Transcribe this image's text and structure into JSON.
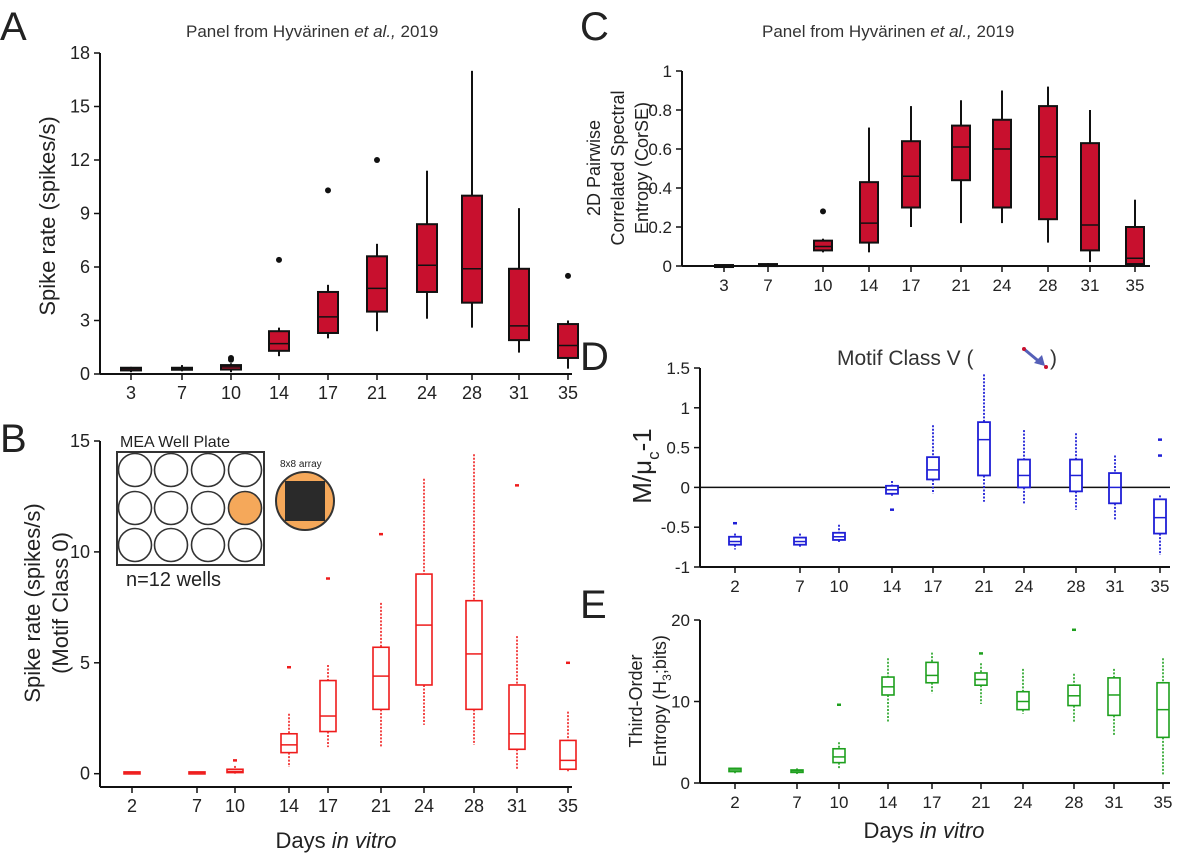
{
  "panels": {
    "A": {
      "letter": "A",
      "note_prefix": "Panel from Hyvärinen ",
      "note_italic": "et al.,",
      "note_suffix": " 2019"
    },
    "B": {
      "letter": "B"
    },
    "C": {
      "letter": "C",
      "note_prefix": "Panel from Hyvärinen ",
      "note_italic": "et al.,",
      "note_suffix": " 2019"
    },
    "D": {
      "letter": "D"
    },
    "E": {
      "letter": "E"
    }
  },
  "bottom_xlabel": {
    "plain": "Days ",
    "italic": "in vitro"
  },
  "inset": {
    "plate_title": "MEA Well Plate",
    "array_label": "8x8 array",
    "wells_label": "n=12 wells",
    "well_color": "#f5a85a"
  },
  "chart_data": [
    {
      "id": "A",
      "type": "boxplot",
      "ylabel": "Spike rate (spikes/s)",
      "ylim": [
        0,
        18
      ],
      "yticks": [
        0,
        3,
        6,
        9,
        12,
        15,
        18
      ],
      "categories": [
        "3",
        "7",
        "10",
        "14",
        "17",
        "21",
        "24",
        "28",
        "31",
        "35"
      ],
      "color": "#c8102e",
      "box_fill": "#c8102e",
      "boxes": [
        {
          "day": "3",
          "whislo": 0.1,
          "q1": 0.2,
          "med": 0.3,
          "q3": 0.35,
          "whishi": 0.4,
          "outliers": []
        },
        {
          "day": "7",
          "whislo": 0.15,
          "q1": 0.25,
          "med": 0.3,
          "q3": 0.35,
          "whishi": 0.5,
          "outliers": []
        },
        {
          "day": "10",
          "whislo": 0.1,
          "q1": 0.25,
          "med": 0.4,
          "q3": 0.5,
          "whishi": 0.6,
          "outliers": [
            0.8,
            0.9
          ]
        },
        {
          "day": "14",
          "whislo": 1.0,
          "q1": 1.3,
          "med": 1.7,
          "q3": 2.4,
          "whishi": 2.6,
          "outliers": [
            6.4
          ]
        },
        {
          "day": "17",
          "whislo": 2.0,
          "q1": 2.3,
          "med": 3.2,
          "q3": 4.6,
          "whishi": 5.0,
          "outliers": [
            10.3
          ]
        },
        {
          "day": "21",
          "whislo": 2.4,
          "q1": 3.5,
          "med": 4.8,
          "q3": 6.6,
          "whishi": 7.3,
          "outliers": [
            12.0
          ]
        },
        {
          "day": "24",
          "whislo": 3.1,
          "q1": 4.6,
          "med": 6.1,
          "q3": 8.4,
          "whishi": 11.4,
          "outliers": []
        },
        {
          "day": "28",
          "whislo": 2.6,
          "q1": 4.0,
          "med": 5.9,
          "q3": 10.0,
          "whishi": 17.0,
          "outliers": []
        },
        {
          "day": "31",
          "whislo": 1.2,
          "q1": 1.9,
          "med": 2.7,
          "q3": 5.9,
          "whishi": 9.3,
          "outliers": []
        },
        {
          "day": "35",
          "whislo": 0.3,
          "q1": 0.9,
          "med": 1.6,
          "q3": 2.8,
          "whishi": 3.0,
          "outliers": [
            5.5
          ]
        }
      ]
    },
    {
      "id": "B",
      "type": "boxplot",
      "ylabel_line1": "Spike rate (spikes/s)",
      "ylabel_line2": "(Motif Class 0)",
      "ylim": [
        -0.6,
        15
      ],
      "yticks": [
        0,
        5,
        10,
        15
      ],
      "categories": [
        "2",
        "7",
        "10",
        "14",
        "17",
        "21",
        "24",
        "28",
        "31",
        "35"
      ],
      "color": "#ee1c1c",
      "box_fill": "none",
      "boxes": [
        {
          "day": "2",
          "whislo": 0,
          "q1": 0.03,
          "med": 0.05,
          "q3": 0.08,
          "whishi": 0.1,
          "outliers": []
        },
        {
          "day": "7",
          "whislo": 0,
          "q1": 0.03,
          "med": 0.05,
          "q3": 0.08,
          "whishi": 0.1,
          "outliers": []
        },
        {
          "day": "10",
          "whislo": 0,
          "q1": 0.05,
          "med": 0.1,
          "q3": 0.2,
          "whishi": 0.35,
          "outliers": [
            0.6
          ]
        },
        {
          "day": "14",
          "whislo": 0.3,
          "q1": 0.95,
          "med": 1.3,
          "q3": 1.8,
          "whishi": 2.7,
          "outliers": [
            4.8
          ]
        },
        {
          "day": "17",
          "whislo": 1.2,
          "q1": 1.9,
          "med": 2.6,
          "q3": 4.2,
          "whishi": 4.9,
          "outliers": [
            8.8
          ]
        },
        {
          "day": "21",
          "whislo": 1.2,
          "q1": 2.9,
          "med": 4.4,
          "q3": 5.7,
          "whishi": 7.7,
          "outliers": [
            10.8
          ]
        },
        {
          "day": "24",
          "whislo": 2.2,
          "q1": 4.0,
          "med": 6.7,
          "q3": 9.0,
          "whishi": 13.3,
          "outliers": []
        },
        {
          "day": "28",
          "whislo": 1.3,
          "q1": 2.9,
          "med": 5.4,
          "q3": 7.8,
          "whishi": 14.4,
          "outliers": []
        },
        {
          "day": "31",
          "whislo": 0.2,
          "q1": 1.1,
          "med": 1.8,
          "q3": 4.0,
          "whishi": 6.2,
          "outliers": [
            13.0
          ]
        },
        {
          "day": "35",
          "whislo": 0.05,
          "q1": 0.2,
          "med": 0.6,
          "q3": 1.5,
          "whishi": 2.8,
          "outliers": [
            5.0
          ]
        }
      ]
    },
    {
      "id": "C",
      "type": "boxplot",
      "ylabel_line1": "2D Pairwise",
      "ylabel_line2": "Correlated Spectral",
      "ylabel_line3": "Entropy (CorSE)",
      "ylim": [
        0,
        1.0
      ],
      "yticks": [
        0,
        0.2,
        0.4,
        0.6,
        0.8,
        1.0
      ],
      "categories": [
        "3",
        "7",
        "10",
        "14",
        "17",
        "21",
        "24",
        "28",
        "31",
        "35"
      ],
      "color": "#c8102e",
      "box_fill": "#c8102e",
      "boxes": [
        {
          "day": "3",
          "whislo": 0,
          "q1": 0,
          "med": 0.002,
          "q3": 0.005,
          "whishi": 0.008,
          "outliers": []
        },
        {
          "day": "7",
          "whislo": 0,
          "q1": 0.003,
          "med": 0.006,
          "q3": 0.01,
          "whishi": 0.015,
          "outliers": []
        },
        {
          "day": "10",
          "whislo": 0.07,
          "q1": 0.08,
          "med": 0.1,
          "q3": 0.13,
          "whishi": 0.14,
          "outliers": [
            0.28
          ]
        },
        {
          "day": "14",
          "whislo": 0.07,
          "q1": 0.12,
          "med": 0.22,
          "q3": 0.43,
          "whishi": 0.71,
          "outliers": []
        },
        {
          "day": "17",
          "whislo": 0.2,
          "q1": 0.3,
          "med": 0.46,
          "q3": 0.64,
          "whishi": 0.82,
          "outliers": []
        },
        {
          "day": "21",
          "whislo": 0.22,
          "q1": 0.44,
          "med": 0.61,
          "q3": 0.72,
          "whishi": 0.85,
          "outliers": []
        },
        {
          "day": "24",
          "whislo": 0.22,
          "q1": 0.3,
          "med": 0.6,
          "q3": 0.75,
          "whishi": 0.9,
          "outliers": []
        },
        {
          "day": "28",
          "whislo": 0.12,
          "q1": 0.24,
          "med": 0.56,
          "q3": 0.82,
          "whishi": 0.92,
          "outliers": []
        },
        {
          "day": "31",
          "whislo": 0.02,
          "q1": 0.08,
          "med": 0.21,
          "q3": 0.63,
          "whishi": 0.8,
          "outliers": []
        },
        {
          "day": "35",
          "whislo": 0,
          "q1": 0.01,
          "med": 0.04,
          "q3": 0.2,
          "whishi": 0.34,
          "outliers": []
        }
      ]
    },
    {
      "id": "D",
      "type": "boxplot",
      "title": "Motif Class V (",
      "title_end": ")",
      "ylabel": "M/μ",
      "ylabel_sub": "c",
      "ylabel_tail": "-1",
      "ylim": [
        -1,
        1.5
      ],
      "yticks": [
        -1,
        -0.5,
        0,
        0.5,
        1,
        1.5
      ],
      "zero_line": true,
      "categories": [
        "2",
        "7",
        "10",
        "14",
        "17",
        "21",
        "24",
        "28",
        "31",
        "35"
      ],
      "color": "#1f1fd6",
      "box_fill": "none",
      "boxes": [
        {
          "day": "2",
          "whislo": -0.78,
          "q1": -0.72,
          "med": -0.68,
          "q3": -0.62,
          "whishi": -0.58,
          "outliers": [
            -0.45
          ]
        },
        {
          "day": "7",
          "whislo": -0.76,
          "q1": -0.72,
          "med": -0.68,
          "q3": -0.63,
          "whishi": -0.58,
          "outliers": []
        },
        {
          "day": "10",
          "whislo": -0.7,
          "q1": -0.66,
          "med": -0.62,
          "q3": -0.57,
          "whishi": -0.47,
          "outliers": []
        },
        {
          "day": "14",
          "whislo": -0.12,
          "q1": -0.08,
          "med": -0.03,
          "q3": 0.02,
          "whishi": 0.08,
          "outliers": [
            -0.28
          ]
        },
        {
          "day": "17",
          "whislo": -0.08,
          "q1": 0.1,
          "med": 0.22,
          "q3": 0.38,
          "whishi": 0.78,
          "outliers": []
        },
        {
          "day": "21",
          "whislo": -0.18,
          "q1": 0.15,
          "med": 0.6,
          "q3": 0.82,
          "whishi": 1.42,
          "outliers": []
        },
        {
          "day": "24",
          "whislo": -0.2,
          "q1": 0.0,
          "med": 0.15,
          "q3": 0.35,
          "whishi": 0.72,
          "outliers": []
        },
        {
          "day": "28",
          "whislo": -0.28,
          "q1": -0.05,
          "med": 0.15,
          "q3": 0.35,
          "whishi": 0.68,
          "outliers": []
        },
        {
          "day": "31",
          "whislo": -0.42,
          "q1": -0.2,
          "med": 0.0,
          "q3": 0.18,
          "whishi": 0.4,
          "outliers": []
        },
        {
          "day": "35",
          "whislo": -0.85,
          "q1": -0.58,
          "med": -0.38,
          "q3": -0.15,
          "whishi": -0.1,
          "outliers": [
            0.6,
            0.4
          ]
        }
      ]
    },
    {
      "id": "E",
      "type": "boxplot",
      "ylabel_line1": "Third-Order",
      "ylabel_line2": "Entropy (H",
      "ylabel_sub": "3",
      "ylabel_tail": ";bits)",
      "ylim": [
        0,
        20
      ],
      "yticks": [
        0,
        10,
        20
      ],
      "categories": [
        "2",
        "7",
        "10",
        "14",
        "17",
        "21",
        "24",
        "28",
        "31",
        "35"
      ],
      "color": "#1ea01e",
      "box_fill": "none",
      "boxes": [
        {
          "day": "2",
          "whislo": 1.2,
          "q1": 1.4,
          "med": 1.6,
          "q3": 1.8,
          "whishi": 1.9,
          "outliers": []
        },
        {
          "day": "7",
          "whislo": 1.1,
          "q1": 1.3,
          "med": 1.5,
          "q3": 1.6,
          "whishi": 1.8,
          "outliers": []
        },
        {
          "day": "10",
          "whislo": 1.8,
          "q1": 2.5,
          "med": 3.2,
          "q3": 4.2,
          "whishi": 5.0,
          "outliers": [
            9.6
          ]
        },
        {
          "day": "14",
          "whislo": 7.5,
          "q1": 10.8,
          "med": 11.8,
          "q3": 13.0,
          "whishi": 15.3,
          "outliers": []
        },
        {
          "day": "17",
          "whislo": 11.0,
          "q1": 12.3,
          "med": 13.2,
          "q3": 14.8,
          "whishi": 16.0,
          "outliers": []
        },
        {
          "day": "21",
          "whislo": 9.7,
          "q1": 12.0,
          "med": 12.7,
          "q3": 13.5,
          "whishi": 14.7,
          "outliers": [
            15.9
          ]
        },
        {
          "day": "24",
          "whislo": 8.5,
          "q1": 9.0,
          "med": 10.0,
          "q3": 11.2,
          "whishi": 14.0,
          "outliers": []
        },
        {
          "day": "28",
          "whislo": 7.5,
          "q1": 9.5,
          "med": 10.7,
          "q3": 12.0,
          "whishi": 13.4,
          "outliers": [
            18.8
          ]
        },
        {
          "day": "31",
          "whislo": 5.8,
          "q1": 8.3,
          "med": 10.8,
          "q3": 12.9,
          "whishi": 14.0,
          "outliers": []
        },
        {
          "day": "35",
          "whislo": 1.0,
          "q1": 5.6,
          "med": 9.0,
          "q3": 12.3,
          "whishi": 15.3,
          "outliers": []
        }
      ]
    }
  ]
}
